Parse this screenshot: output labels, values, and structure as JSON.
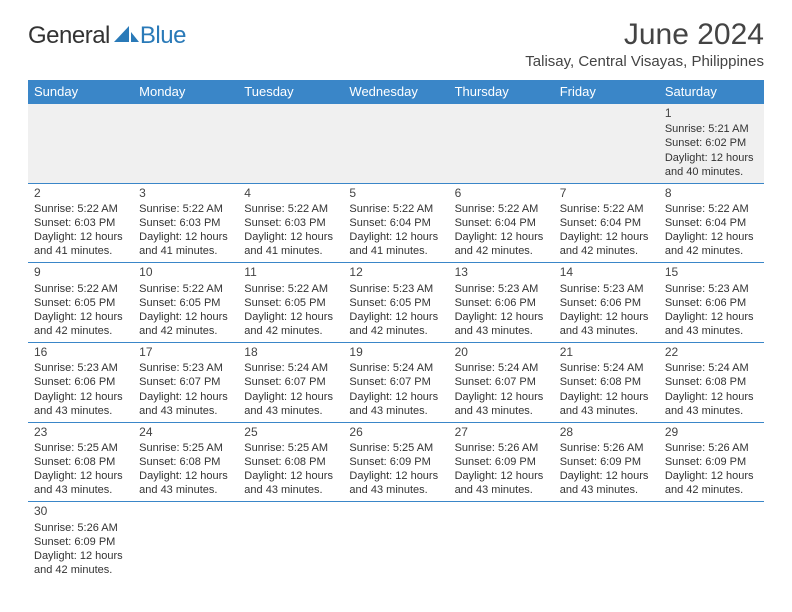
{
  "brand": {
    "general": "General",
    "blue": "Blue"
  },
  "title": "June 2024",
  "subtitle": "Talisay, Central Visayas, Philippines",
  "day_headers": [
    "Sunday",
    "Monday",
    "Tuesday",
    "Wednesday",
    "Thursday",
    "Friday",
    "Saturday"
  ],
  "colors": {
    "header_bg": "#3a86c8",
    "header_fg": "#ffffff",
    "rule": "#3a86c8",
    "first_week_bg": "#f0f0f0",
    "brand_blue": "#2a7ab8",
    "text": "#333333"
  },
  "labels": {
    "sunrise_prefix": "Sunrise: ",
    "sunset_prefix": "Sunset: ",
    "daylight_prefix": "Daylight: ",
    "and": "and ",
    "minutes_suffix": " minutes."
  },
  "weeks": [
    [
      null,
      null,
      null,
      null,
      null,
      null,
      {
        "day": "1",
        "sunrise": "5:21 AM",
        "sunset": "6:02 PM",
        "daylight_h": "12 hours",
        "daylight_m": "40"
      }
    ],
    [
      {
        "day": "2",
        "sunrise": "5:22 AM",
        "sunset": "6:03 PM",
        "daylight_h": "12 hours",
        "daylight_m": "41"
      },
      {
        "day": "3",
        "sunrise": "5:22 AM",
        "sunset": "6:03 PM",
        "daylight_h": "12 hours",
        "daylight_m": "41"
      },
      {
        "day": "4",
        "sunrise": "5:22 AM",
        "sunset": "6:03 PM",
        "daylight_h": "12 hours",
        "daylight_m": "41"
      },
      {
        "day": "5",
        "sunrise": "5:22 AM",
        "sunset": "6:04 PM",
        "daylight_h": "12 hours",
        "daylight_m": "41"
      },
      {
        "day": "6",
        "sunrise": "5:22 AM",
        "sunset": "6:04 PM",
        "daylight_h": "12 hours",
        "daylight_m": "42"
      },
      {
        "day": "7",
        "sunrise": "5:22 AM",
        "sunset": "6:04 PM",
        "daylight_h": "12 hours",
        "daylight_m": "42"
      },
      {
        "day": "8",
        "sunrise": "5:22 AM",
        "sunset": "6:04 PM",
        "daylight_h": "12 hours",
        "daylight_m": "42"
      }
    ],
    [
      {
        "day": "9",
        "sunrise": "5:22 AM",
        "sunset": "6:05 PM",
        "daylight_h": "12 hours",
        "daylight_m": "42"
      },
      {
        "day": "10",
        "sunrise": "5:22 AM",
        "sunset": "6:05 PM",
        "daylight_h": "12 hours",
        "daylight_m": "42"
      },
      {
        "day": "11",
        "sunrise": "5:22 AM",
        "sunset": "6:05 PM",
        "daylight_h": "12 hours",
        "daylight_m": "42"
      },
      {
        "day": "12",
        "sunrise": "5:23 AM",
        "sunset": "6:05 PM",
        "daylight_h": "12 hours",
        "daylight_m": "42"
      },
      {
        "day": "13",
        "sunrise": "5:23 AM",
        "sunset": "6:06 PM",
        "daylight_h": "12 hours",
        "daylight_m": "43"
      },
      {
        "day": "14",
        "sunrise": "5:23 AM",
        "sunset": "6:06 PM",
        "daylight_h": "12 hours",
        "daylight_m": "43"
      },
      {
        "day": "15",
        "sunrise": "5:23 AM",
        "sunset": "6:06 PM",
        "daylight_h": "12 hours",
        "daylight_m": "43"
      }
    ],
    [
      {
        "day": "16",
        "sunrise": "5:23 AM",
        "sunset": "6:06 PM",
        "daylight_h": "12 hours",
        "daylight_m": "43"
      },
      {
        "day": "17",
        "sunrise": "5:23 AM",
        "sunset": "6:07 PM",
        "daylight_h": "12 hours",
        "daylight_m": "43"
      },
      {
        "day": "18",
        "sunrise": "5:24 AM",
        "sunset": "6:07 PM",
        "daylight_h": "12 hours",
        "daylight_m": "43"
      },
      {
        "day": "19",
        "sunrise": "5:24 AM",
        "sunset": "6:07 PM",
        "daylight_h": "12 hours",
        "daylight_m": "43"
      },
      {
        "day": "20",
        "sunrise": "5:24 AM",
        "sunset": "6:07 PM",
        "daylight_h": "12 hours",
        "daylight_m": "43"
      },
      {
        "day": "21",
        "sunrise": "5:24 AM",
        "sunset": "6:08 PM",
        "daylight_h": "12 hours",
        "daylight_m": "43"
      },
      {
        "day": "22",
        "sunrise": "5:24 AM",
        "sunset": "6:08 PM",
        "daylight_h": "12 hours",
        "daylight_m": "43"
      }
    ],
    [
      {
        "day": "23",
        "sunrise": "5:25 AM",
        "sunset": "6:08 PM",
        "daylight_h": "12 hours",
        "daylight_m": "43"
      },
      {
        "day": "24",
        "sunrise": "5:25 AM",
        "sunset": "6:08 PM",
        "daylight_h": "12 hours",
        "daylight_m": "43"
      },
      {
        "day": "25",
        "sunrise": "5:25 AM",
        "sunset": "6:08 PM",
        "daylight_h": "12 hours",
        "daylight_m": "43"
      },
      {
        "day": "26",
        "sunrise": "5:25 AM",
        "sunset": "6:09 PM",
        "daylight_h": "12 hours",
        "daylight_m": "43"
      },
      {
        "day": "27",
        "sunrise": "5:26 AM",
        "sunset": "6:09 PM",
        "daylight_h": "12 hours",
        "daylight_m": "43"
      },
      {
        "day": "28",
        "sunrise": "5:26 AM",
        "sunset": "6:09 PM",
        "daylight_h": "12 hours",
        "daylight_m": "43"
      },
      {
        "day": "29",
        "sunrise": "5:26 AM",
        "sunset": "6:09 PM",
        "daylight_h": "12 hours",
        "daylight_m": "42"
      }
    ],
    [
      {
        "day": "30",
        "sunrise": "5:26 AM",
        "sunset": "6:09 PM",
        "daylight_h": "12 hours",
        "daylight_m": "42"
      },
      null,
      null,
      null,
      null,
      null,
      null
    ]
  ]
}
